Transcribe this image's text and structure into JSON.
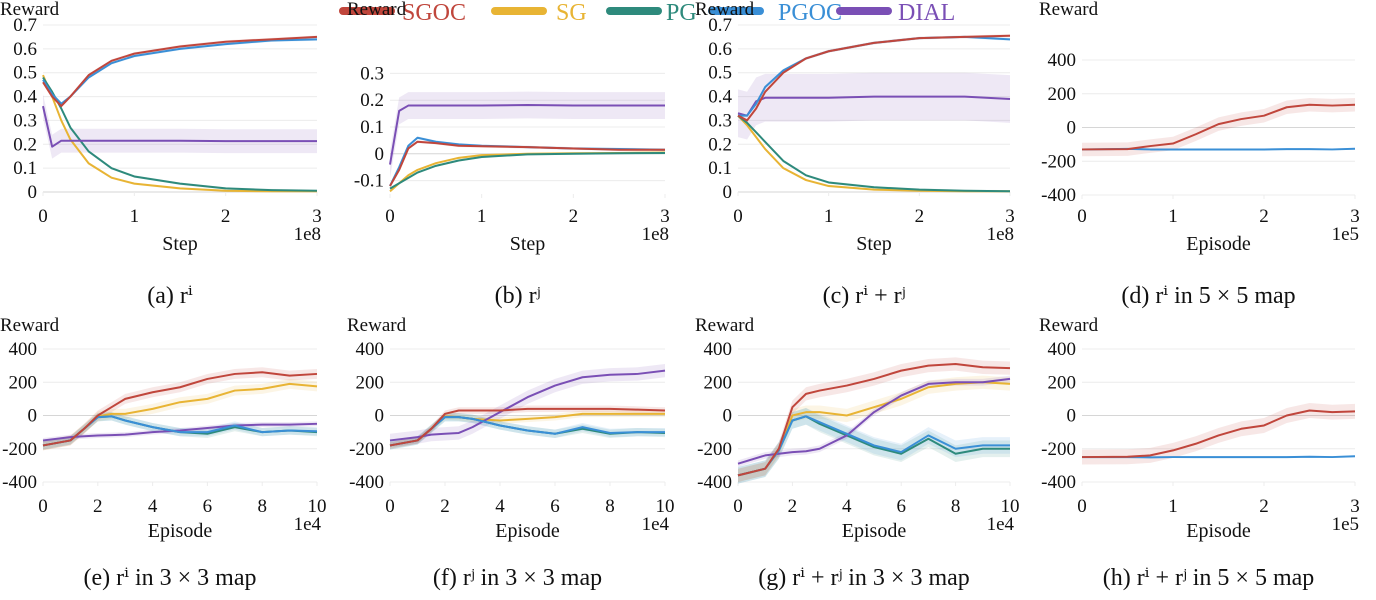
{
  "legend": [
    {
      "name": "SGOC",
      "color": "#c0463c"
    },
    {
      "name": "SG",
      "color": "#e8b434"
    },
    {
      "name": "PG",
      "color": "#2e8a7c"
    },
    {
      "name": "PGOC",
      "color": "#3a8fd6"
    },
    {
      "name": "DIAL",
      "color": "#7a4fb5"
    }
  ],
  "chart_data": [
    {
      "type": "line",
      "caption": "(a) rⁱ",
      "ylabel": "Reward",
      "xlabel": "Step",
      "x_multiplier": "1e8",
      "xlim": [
        0,
        3
      ],
      "ylim": [
        0,
        0.7
      ],
      "xticks": [
        "0",
        "1",
        "2",
        "3"
      ],
      "yticks": [
        "0",
        "0.1",
        "0.2",
        "0.3",
        "0.4",
        "0.5",
        "0.6",
        "0.7"
      ],
      "grid": true,
      "x": [
        0,
        0.1,
        0.2,
        0.3,
        0.5,
        0.75,
        1,
        1.5,
        2,
        2.5,
        3
      ],
      "series": [
        {
          "name": "SG",
          "values": [
            0.49,
            0.4,
            0.3,
            0.22,
            0.12,
            0.06,
            0.035,
            0.015,
            0.005,
            0.003,
            0.003
          ],
          "spread": 0.005
        },
        {
          "name": "PG",
          "values": [
            0.48,
            0.42,
            0.35,
            0.27,
            0.17,
            0.1,
            0.065,
            0.035,
            0.015,
            0.008,
            0.005
          ],
          "spread": 0.005
        },
        {
          "name": "DIAL",
          "values": [
            0.36,
            0.19,
            0.215,
            0.215,
            0.215,
            0.215,
            0.215,
            0.215,
            0.213,
            0.213,
            0.213
          ],
          "spread": 0.05
        },
        {
          "name": "PGOC",
          "values": [
            0.47,
            0.41,
            0.37,
            0.4,
            0.48,
            0.54,
            0.57,
            0.6,
            0.62,
            0.635,
            0.64
          ],
          "spread": 0.006
        },
        {
          "name": "SGOC",
          "values": [
            0.46,
            0.4,
            0.36,
            0.4,
            0.49,
            0.55,
            0.58,
            0.61,
            0.63,
            0.64,
            0.65
          ],
          "spread": 0.006
        }
      ]
    },
    {
      "type": "line",
      "caption": "(b) rʲ",
      "ylabel": "Reward",
      "xlabel": "Step",
      "x_multiplier": "1e8",
      "xlim": [
        0,
        3
      ],
      "ylim": [
        -0.15,
        0.35
      ],
      "xticks": [
        "0",
        "1",
        "2",
        "3"
      ],
      "yticks": [
        "-0.1",
        "0",
        "0.1",
        "0.2",
        "0.3"
      ],
      "grid": true,
      "x": [
        0,
        0.1,
        0.2,
        0.3,
        0.5,
        0.75,
        1,
        1.5,
        2,
        2.5,
        3
      ],
      "series": [
        {
          "name": "SG",
          "values": [
            -0.14,
            -0.11,
            -0.08,
            -0.06,
            -0.035,
            -0.015,
            -0.005,
            0,
            0.002,
            0.003,
            0.005
          ],
          "spread": 0.004
        },
        {
          "name": "PG",
          "values": [
            -0.13,
            -0.11,
            -0.09,
            -0.07,
            -0.045,
            -0.025,
            -0.012,
            -0.002,
            0,
            0.002,
            0.003
          ],
          "spread": 0.004
        },
        {
          "name": "DIAL",
          "values": [
            -0.04,
            0.16,
            0.18,
            0.18,
            0.18,
            0.18,
            0.18,
            0.182,
            0.18,
            0.18,
            0.18
          ],
          "spread": 0.05
        },
        {
          "name": "PGOC",
          "values": [
            -0.12,
            -0.05,
            0.03,
            0.06,
            0.045,
            0.035,
            0.03,
            0.025,
            0.02,
            0.018,
            0.015
          ],
          "spread": 0.005
        },
        {
          "name": "SGOC",
          "values": [
            -0.12,
            -0.06,
            0.02,
            0.045,
            0.04,
            0.03,
            0.028,
            0.025,
            0.02,
            0.015,
            0.015
          ],
          "spread": 0.005
        }
      ]
    },
    {
      "type": "line",
      "caption": "(c) rⁱ + rʲ",
      "ylabel": "Reward",
      "xlabel": "Step",
      "x_multiplier": "1e8",
      "xlim": [
        0,
        3
      ],
      "ylim": [
        0,
        0.7
      ],
      "xticks": [
        "0",
        "1",
        "2",
        "3"
      ],
      "yticks": [
        "0",
        "0.1",
        "0.2",
        "0.3",
        "0.4",
        "0.5",
        "0.6",
        "0.7"
      ],
      "grid": true,
      "x": [
        0,
        0.1,
        0.2,
        0.3,
        0.5,
        0.75,
        1,
        1.5,
        2,
        2.5,
        3
      ],
      "series": [
        {
          "name": "SG",
          "values": [
            0.32,
            0.28,
            0.23,
            0.18,
            0.1,
            0.05,
            0.025,
            0.01,
            0.005,
            0.003,
            0.003
          ],
          "spread": 0.005
        },
        {
          "name": "PG",
          "values": [
            0.32,
            0.29,
            0.25,
            0.21,
            0.13,
            0.07,
            0.04,
            0.02,
            0.01,
            0.005,
            0.003
          ],
          "spread": 0.005
        },
        {
          "name": "DIAL",
          "values": [
            0.33,
            0.32,
            0.38,
            0.395,
            0.395,
            0.395,
            0.395,
            0.4,
            0.4,
            0.4,
            0.39
          ],
          "spread": 0.1
        },
        {
          "name": "PGOC",
          "values": [
            0.32,
            0.32,
            0.37,
            0.44,
            0.51,
            0.56,
            0.59,
            0.625,
            0.645,
            0.65,
            0.64
          ],
          "spread": 0.006
        },
        {
          "name": "SGOC",
          "values": [
            0.32,
            0.3,
            0.35,
            0.42,
            0.5,
            0.56,
            0.59,
            0.625,
            0.645,
            0.65,
            0.655
          ],
          "spread": 0.006
        }
      ]
    },
    {
      "type": "line",
      "caption": "(d) rⁱ in 5 × 5 map",
      "ylabel": "Reward",
      "xlabel": "Episode",
      "x_multiplier": "1e5",
      "xlim": [
        0,
        3
      ],
      "ylim": [
        -400,
        400
      ],
      "xticks": [
        "0",
        "1",
        "2",
        "3"
      ],
      "yticks": [
        "-400",
        "-200",
        "0",
        "200",
        "400"
      ],
      "grid": true,
      "x": [
        0,
        0.5,
        0.75,
        1,
        1.25,
        1.5,
        1.75,
        2,
        2.25,
        2.5,
        2.75,
        3
      ],
      "series": [
        {
          "name": "PGOC",
          "values": [
            -130,
            -127,
            -130,
            -130,
            -130,
            -130,
            -130,
            -130,
            -128,
            -128,
            -130,
            -126
          ],
          "spread": 5
        },
        {
          "name": "SGOC",
          "values": [
            -130,
            -128,
            -110,
            -95,
            -40,
            20,
            50,
            70,
            120,
            135,
            130,
            135
          ],
          "spread": 40
        }
      ]
    },
    {
      "type": "line",
      "caption": "(e) rⁱ in 3 × 3 map",
      "ylabel": "Reward",
      "xlabel": "Episode",
      "x_multiplier": "1e4",
      "xlim": [
        0,
        10
      ],
      "ylim": [
        -400,
        400
      ],
      "xticks": [
        "0",
        "2",
        "4",
        "6",
        "8",
        "10"
      ],
      "yticks": [
        "-400",
        "-200",
        "0",
        "200",
        "400"
      ],
      "grid": true,
      "x": [
        0,
        1,
        1.5,
        2,
        2.5,
        3,
        4,
        5,
        6,
        7,
        8,
        9,
        10
      ],
      "series": [
        {
          "name": "SG",
          "values": [
            -180,
            -150,
            -80,
            -5,
            10,
            10,
            40,
            80,
            100,
            150,
            160,
            190,
            175
          ],
          "spread": 30
        },
        {
          "name": "PG",
          "values": [
            -180,
            -150,
            -80,
            -10,
            -5,
            -30,
            -70,
            -100,
            -110,
            -70,
            -100,
            -90,
            -100
          ],
          "spread": 25
        },
        {
          "name": "PGOC",
          "values": [
            -180,
            -150,
            -80,
            -10,
            -5,
            -30,
            -70,
            -100,
            -100,
            -60,
            -100,
            -90,
            -95
          ],
          "spread": 25
        },
        {
          "name": "DIAL",
          "values": [
            -150,
            -130,
            -125,
            -120,
            -118,
            -115,
            -100,
            -90,
            -75,
            -60,
            -55,
            -55,
            -50
          ],
          "spread": 15
        },
        {
          "name": "SGOC",
          "values": [
            -180,
            -150,
            -80,
            0,
            50,
            100,
            140,
            170,
            220,
            250,
            260,
            240,
            250
          ],
          "spread": 30
        }
      ]
    },
    {
      "type": "line",
      "caption": "(f) rʲ in 3 × 3 map",
      "ylabel": "Reward",
      "xlabel": "Episode",
      "x_multiplier": "1e4",
      "xlim": [
        0,
        10
      ],
      "ylim": [
        -400,
        400
      ],
      "xticks": [
        "0",
        "2",
        "4",
        "6",
        "8",
        "10"
      ],
      "yticks": [
        "-400",
        "-200",
        "0",
        "200",
        "400"
      ],
      "grid": true,
      "x": [
        0,
        1,
        1.5,
        2,
        2.5,
        3,
        4,
        5,
        6,
        7,
        8,
        9,
        10
      ],
      "series": [
        {
          "name": "SG",
          "values": [
            -180,
            -150,
            -80,
            -5,
            -10,
            -20,
            -30,
            -20,
            -10,
            10,
            10,
            10,
            10
          ],
          "spread": 20
        },
        {
          "name": "PG",
          "values": [
            -180,
            -150,
            -80,
            -10,
            -10,
            -20,
            -60,
            -90,
            -110,
            -80,
            -110,
            -100,
            -105
          ],
          "spread": 25
        },
        {
          "name": "PGOC",
          "values": [
            -180,
            -150,
            -80,
            -10,
            -10,
            -20,
            -60,
            -90,
            -110,
            -70,
            -105,
            -100,
            -100
          ],
          "spread": 25
        },
        {
          "name": "DIAL",
          "values": [
            -150,
            -130,
            -115,
            -110,
            -105,
            -70,
            20,
            110,
            180,
            230,
            245,
            250,
            270
          ],
          "spread": 40
        },
        {
          "name": "SGOC",
          "values": [
            -180,
            -150,
            -80,
            10,
            30,
            30,
            30,
            40,
            40,
            40,
            40,
            35,
            30
          ],
          "spread": 20
        }
      ]
    },
    {
      "type": "line",
      "caption": "(g) rⁱ + rʲ in 3 × 3 map",
      "ylabel": "Reward",
      "xlabel": "Episode",
      "x_multiplier": "1e4",
      "xlim": [
        0,
        10
      ],
      "ylim": [
        -400,
        400
      ],
      "xticks": [
        "0",
        "2",
        "4",
        "6",
        "8",
        "10"
      ],
      "yticks": [
        "-400",
        "-200",
        "0",
        "200",
        "400"
      ],
      "grid": true,
      "x": [
        0,
        1,
        1.5,
        2,
        2.5,
        3,
        4,
        5,
        6,
        7,
        8,
        9,
        10
      ],
      "series": [
        {
          "name": "SG",
          "values": [
            -360,
            -320,
            -210,
            0,
            20,
            20,
            0,
            50,
            100,
            170,
            190,
            200,
            190
          ],
          "spread": 40
        },
        {
          "name": "PG",
          "values": [
            -360,
            -320,
            -210,
            -30,
            -5,
            -50,
            -120,
            -190,
            -230,
            -140,
            -230,
            -200,
            -200
          ],
          "spread": 50
        },
        {
          "name": "PGOC",
          "values": [
            -360,
            -320,
            -210,
            -30,
            -5,
            -40,
            -110,
            -180,
            -220,
            -120,
            -200,
            -180,
            -180
          ],
          "spread": 50
        },
        {
          "name": "DIAL",
          "values": [
            -290,
            -240,
            -230,
            -220,
            -215,
            -200,
            -120,
            20,
            120,
            190,
            200,
            200,
            220
          ],
          "spread": 20
        },
        {
          "name": "SGOC",
          "values": [
            -360,
            -320,
            -200,
            50,
            130,
            150,
            180,
            220,
            270,
            300,
            310,
            290,
            285
          ],
          "spread": 40
        }
      ]
    },
    {
      "type": "line",
      "caption": "(h) rⁱ + rʲ in 5 × 5 map",
      "ylabel": "Reward",
      "xlabel": "Episode",
      "x_multiplier": "1e5",
      "xlim": [
        0,
        3
      ],
      "ylim": [
        -400,
        400
      ],
      "xticks": [
        "0",
        "1",
        "2",
        "3"
      ],
      "yticks": [
        "-400",
        "-200",
        "0",
        "200",
        "400"
      ],
      "grid": true,
      "x": [
        0,
        0.5,
        0.75,
        1,
        1.25,
        1.5,
        1.75,
        2,
        2.25,
        2.5,
        2.75,
        3
      ],
      "series": [
        {
          "name": "PGOC",
          "values": [
            -250,
            -250,
            -252,
            -250,
            -250,
            -250,
            -250,
            -250,
            -250,
            -248,
            -250,
            -245
          ],
          "spread": 6
        },
        {
          "name": "SGOC",
          "values": [
            -250,
            -248,
            -240,
            -210,
            -170,
            -120,
            -80,
            -60,
            0,
            30,
            20,
            25
          ],
          "spread": 45
        }
      ]
    }
  ]
}
